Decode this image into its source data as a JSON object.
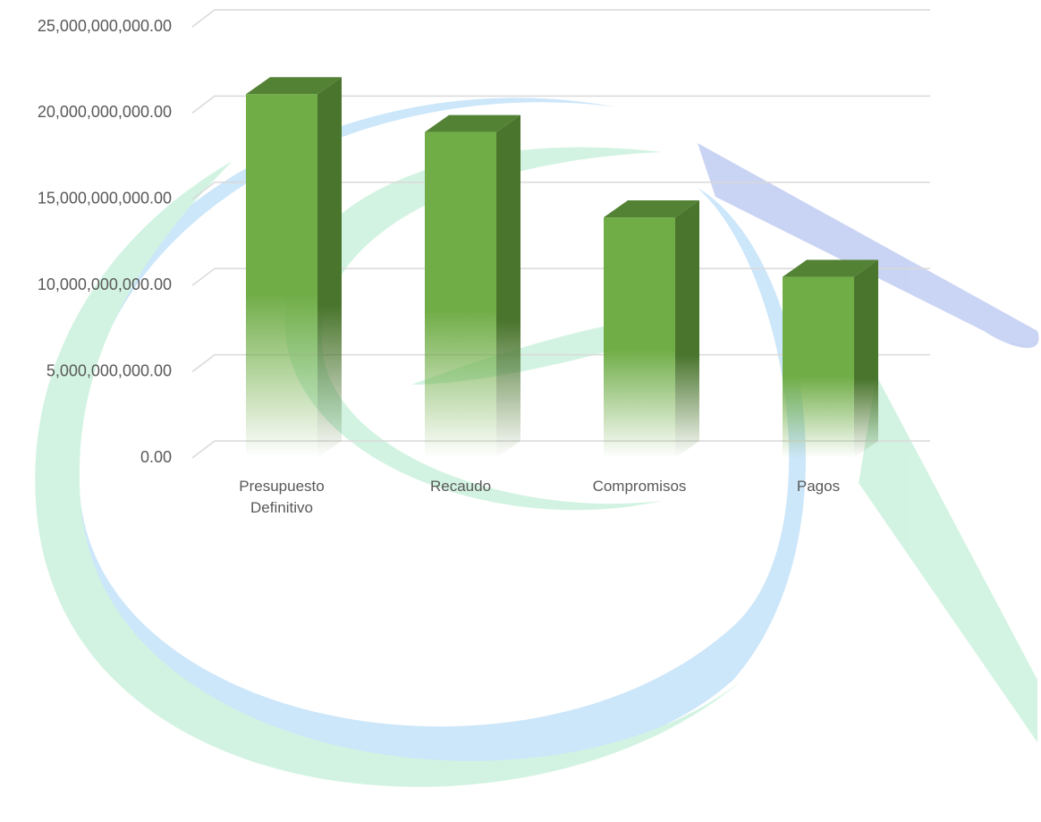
{
  "chart_data": {
    "type": "bar3d",
    "categories": [
      "Presupuesto Definitivo",
      "Recaudo",
      "Compromisos",
      "Pagos"
    ],
    "values": [
      21100000000,
      18900000000,
      13950000000,
      10500000000
    ],
    "color": "#70ad47",
    "ylim": [
      0,
      25000000000
    ],
    "yticks": [
      {
        "value": 0,
        "label": "0.00"
      },
      {
        "value": 5000000000,
        "label": "5,000,000,000.00"
      },
      {
        "value": 10000000000,
        "label": "10,000,000,000.00"
      },
      {
        "value": 15000000000,
        "label": "15,000,000,000.00"
      },
      {
        "value": 20000000000,
        "label": "20,000,000,000.00"
      },
      {
        "value": 25000000000,
        "label": "25,000,000,000.00"
      }
    ],
    "grid": true
  }
}
